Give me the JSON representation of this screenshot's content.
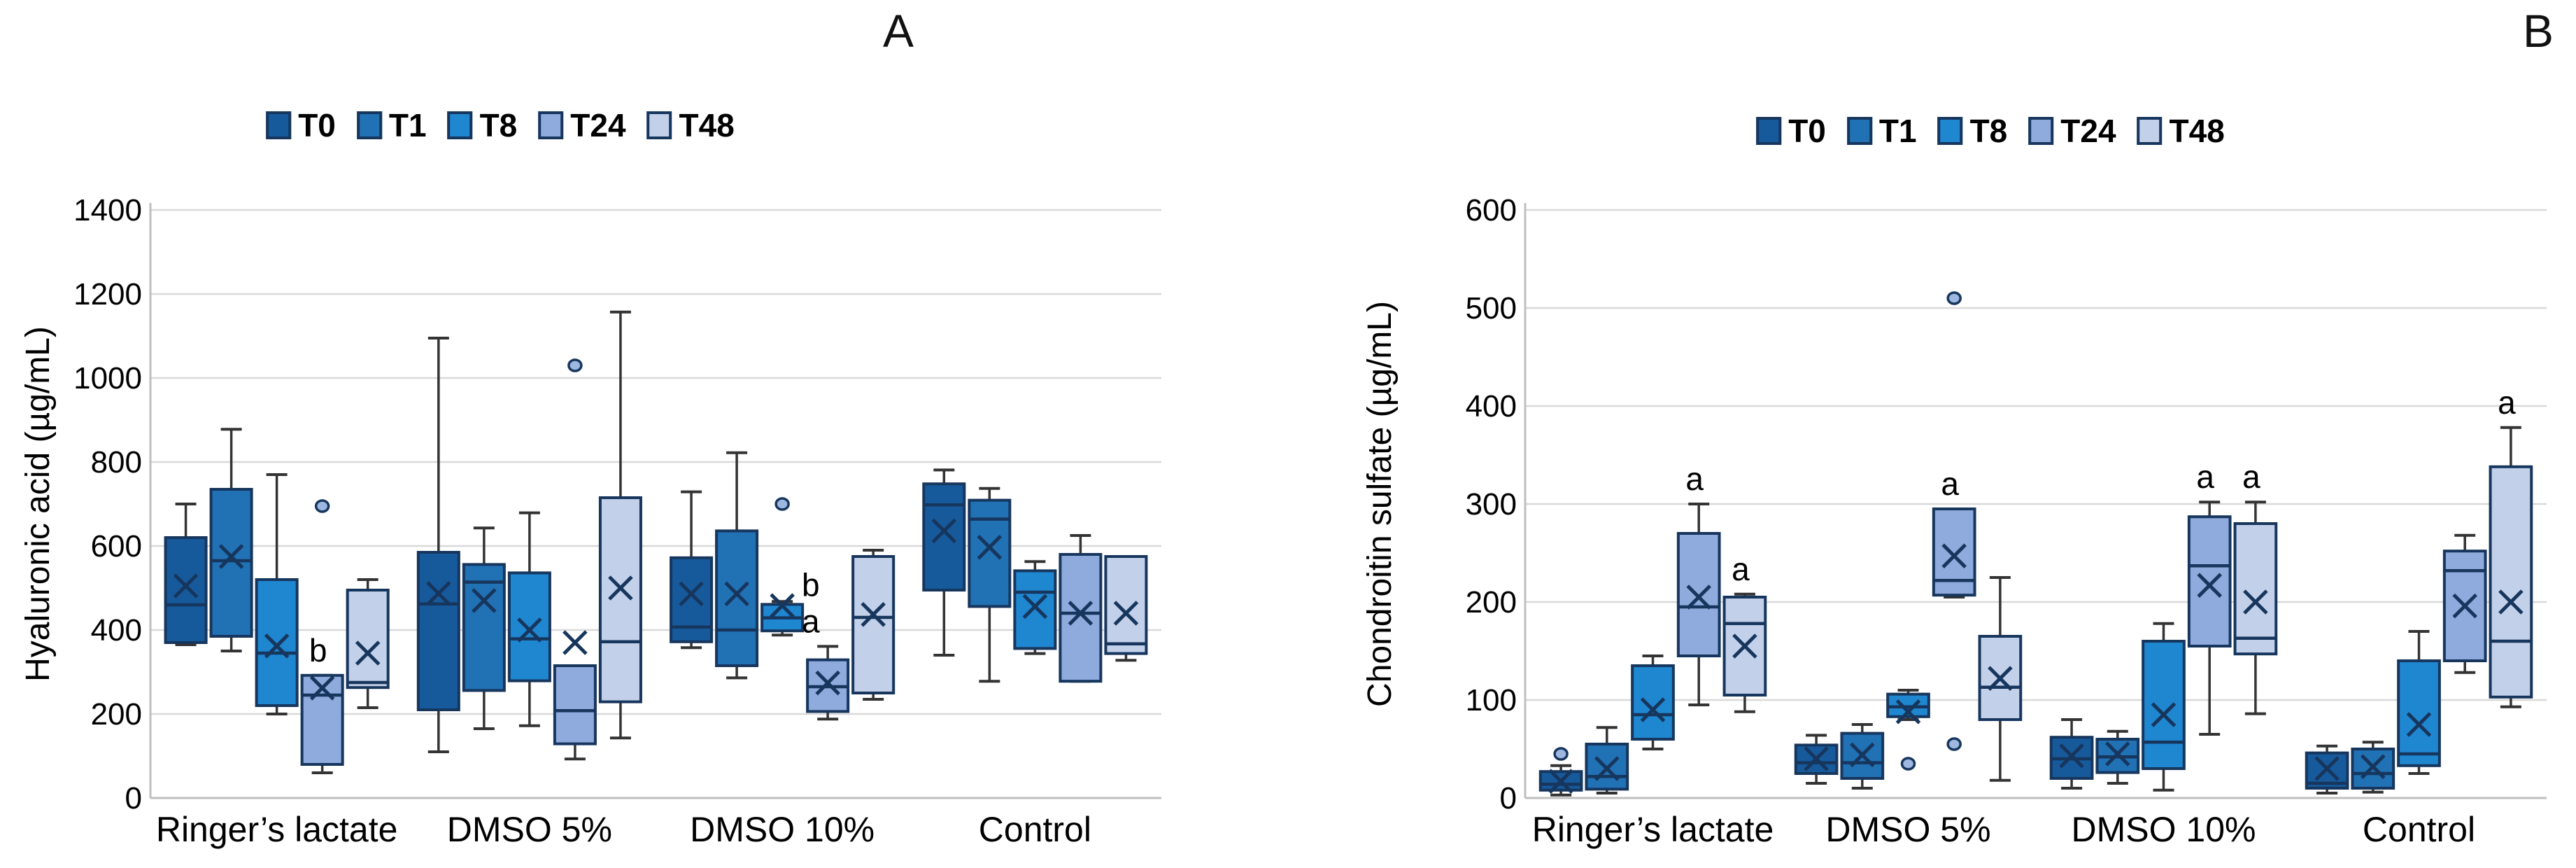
{
  "chart_data": [
    {
      "type": "box",
      "title": "A",
      "ylabel": "Hyaluronic acid (µg/mL)",
      "ylim": [
        0,
        1400
      ],
      "yticks": [
        0,
        200,
        400,
        600,
        800,
        1000,
        1200,
        1400
      ],
      "grid": "horizontal",
      "categories": [
        "Ringer’s lactate",
        "DMSO 5%",
        "DMSO 10%",
        "Control"
      ],
      "series": [
        "T0",
        "T1",
        "T8",
        "T24",
        "T48"
      ],
      "groups": [
        {
          "category": "Ringer’s lactate",
          "items": [
            {
              "t": "T0",
              "lo": 365,
              "q1": 370,
              "med": 460,
              "mean": 505,
              "q3": 620,
              "hi": 700,
              "out": [],
              "sig": ""
            },
            {
              "t": "T1",
              "lo": 350,
              "q1": 385,
              "med": 565,
              "mean": 575,
              "q3": 735,
              "hi": 878,
              "out": [],
              "sig": ""
            },
            {
              "t": "T8",
              "lo": 200,
              "q1": 220,
              "med": 345,
              "mean": 362,
              "q3": 520,
              "hi": 770,
              "out": [],
              "sig": ""
            },
            {
              "t": "T24",
              "lo": 60,
              "q1": 80,
              "med": 245,
              "mean": 262,
              "q3": 292,
              "hi": 292,
              "out": [
                695
              ],
              "sig": "b"
            },
            {
              "t": "T48",
              "lo": 215,
              "q1": 263,
              "med": 275,
              "mean": 345,
              "q3": 495,
              "hi": 520,
              "out": [],
              "sig": ""
            }
          ]
        },
        {
          "category": "DMSO 5%",
          "items": [
            {
              "t": "T0",
              "lo": 110,
              "q1": 210,
              "med": 462,
              "mean": 487,
              "q3": 585,
              "hi": 1095,
              "out": [],
              "sig": ""
            },
            {
              "t": "T1",
              "lo": 165,
              "q1": 256,
              "med": 514,
              "mean": 470,
              "q3": 556,
              "hi": 643,
              "out": [],
              "sig": ""
            },
            {
              "t": "T8",
              "lo": 172,
              "q1": 279,
              "med": 379,
              "mean": 400,
              "q3": 536,
              "hi": 679,
              "out": [],
              "sig": ""
            },
            {
              "t": "T24",
              "lo": 93,
              "q1": 129,
              "med": 208,
              "mean": 370,
              "q3": 315,
              "hi": 315,
              "out": [
                1030
              ],
              "sig": ""
            },
            {
              "t": "T48",
              "lo": 143,
              "q1": 229,
              "med": 372,
              "mean": 500,
              "q3": 715,
              "hi": 1157,
              "out": [],
              "sig": ""
            }
          ]
        },
        {
          "category": "DMSO 10%",
          "items": [
            {
              "t": "T0",
              "lo": 358,
              "q1": 372,
              "med": 407,
              "mean": 486,
              "q3": 572,
              "hi": 729,
              "out": [],
              "sig": ""
            },
            {
              "t": "T1",
              "lo": 286,
              "q1": 315,
              "med": 400,
              "mean": 486,
              "q3": 636,
              "hi": 822,
              "out": [],
              "sig": ""
            },
            {
              "t": "T8",
              "lo": 388,
              "q1": 398,
              "med": 429,
              "mean": 458,
              "q3": 461,
              "hi": 468,
              "out": [
                700
              ],
              "sig": ""
            },
            {
              "t": "T24",
              "lo": 188,
              "q1": 206,
              "med": 265,
              "mean": 274,
              "q3": 329,
              "hi": 361,
              "out": [],
              "sig": "ba"
            },
            {
              "t": "T48",
              "lo": 235,
              "q1": 250,
              "med": 430,
              "mean": 437,
              "q3": 575,
              "hi": 590,
              "out": [],
              "sig": ""
            }
          ]
        },
        {
          "category": "Control",
          "items": [
            {
              "t": "T0",
              "lo": 340,
              "q1": 495,
              "med": 698,
              "mean": 636,
              "q3": 748,
              "hi": 781,
              "out": [],
              "sig": ""
            },
            {
              "t": "T1",
              "lo": 278,
              "q1": 456,
              "med": 664,
              "mean": 597,
              "q3": 709,
              "hi": 737,
              "out": [],
              "sig": ""
            },
            {
              "t": "T8",
              "lo": 344,
              "q1": 356,
              "med": 490,
              "mean": 456,
              "q3": 541,
              "hi": 563,
              "out": [],
              "sig": ""
            },
            {
              "t": "T24",
              "lo": 278,
              "q1": 278,
              "med": 440,
              "mean": 440,
              "q3": 580,
              "hi": 625,
              "out": [],
              "sig": ""
            },
            {
              "t": "T48",
              "lo": 328,
              "q1": 344,
              "med": 367,
              "mean": 440,
              "q3": 575,
              "hi": 575,
              "out": [],
              "sig": ""
            }
          ]
        }
      ]
    },
    {
      "type": "box",
      "title": "B",
      "ylabel": "Chondroitin sulfate (µg/mL)",
      "ylim": [
        0,
        600
      ],
      "yticks": [
        0,
        100,
        200,
        300,
        400,
        500,
        600
      ],
      "grid": "horizontal",
      "categories": [
        "Ringer’s lactate",
        "DMSO 5%",
        "DMSO 10%",
        "Control"
      ],
      "series": [
        "T0",
        "T1",
        "T8",
        "T24",
        "T48"
      ],
      "groups": [
        {
          "category": "Ringer’s lactate",
          "items": [
            {
              "t": "T0",
              "lo": 3,
              "q1": 8,
              "med": 14,
              "mean": 17,
              "q3": 27,
              "hi": 33,
              "out": [
                45
              ],
              "sig": ""
            },
            {
              "t": "T1",
              "lo": 5,
              "q1": 9,
              "med": 22,
              "mean": 30,
              "q3": 55,
              "hi": 72,
              "out": [],
              "sig": ""
            },
            {
              "t": "T8",
              "lo": 50,
              "q1": 60,
              "med": 85,
              "mean": 90,
              "q3": 135,
              "hi": 145,
              "out": [],
              "sig": ""
            },
            {
              "t": "T24",
              "lo": 95,
              "q1": 145,
              "med": 195,
              "mean": 205,
              "q3": 270,
              "hi": 300,
              "out": [],
              "sig": "a"
            },
            {
              "t": "T48",
              "lo": 88,
              "q1": 105,
              "med": 178,
              "mean": 155,
              "q3": 205,
              "hi": 208,
              "out": [],
              "sig": "a"
            }
          ]
        },
        {
          "category": "DMSO 5%",
          "items": [
            {
              "t": "T0",
              "lo": 15,
              "q1": 25,
              "med": 36,
              "mean": 40,
              "q3": 54,
              "hi": 64,
              "out": [],
              "sig": ""
            },
            {
              "t": "T1",
              "lo": 10,
              "q1": 20,
              "med": 36,
              "mean": 44,
              "q3": 66,
              "hi": 75,
              "out": [],
              "sig": ""
            },
            {
              "t": "T8",
              "lo": 80,
              "q1": 83,
              "med": 93,
              "mean": 88,
              "q3": 106,
              "hi": 110,
              "out": [
                35
              ],
              "sig": ""
            },
            {
              "t": "T24",
              "lo": 205,
              "q1": 207,
              "med": 222,
              "mean": 247,
              "q3": 295,
              "hi": 295,
              "out": [
                510,
                55
              ],
              "sig": "a"
            },
            {
              "t": "T48",
              "lo": 18,
              "q1": 80,
              "med": 113,
              "mean": 122,
              "q3": 165,
              "hi": 225,
              "out": [],
              "sig": ""
            }
          ]
        },
        {
          "category": "DMSO 10%",
          "items": [
            {
              "t": "T0",
              "lo": 10,
              "q1": 20,
              "med": 40,
              "mean": 43,
              "q3": 62,
              "hi": 80,
              "out": [],
              "sig": ""
            },
            {
              "t": "T1",
              "lo": 15,
              "q1": 26,
              "med": 42,
              "mean": 45,
              "q3": 60,
              "hi": 68,
              "out": [],
              "sig": ""
            },
            {
              "t": "T8",
              "lo": 8,
              "q1": 30,
              "med": 57,
              "mean": 85,
              "q3": 160,
              "hi": 178,
              "out": [],
              "sig": ""
            },
            {
              "t": "T24",
              "lo": 65,
              "q1": 155,
              "med": 237,
              "mean": 217,
              "q3": 287,
              "hi": 302,
              "out": [],
              "sig": "a"
            },
            {
              "t": "T48",
              "lo": 86,
              "q1": 147,
              "med": 163,
              "mean": 200,
              "q3": 280,
              "hi": 302,
              "out": [],
              "sig": "a"
            }
          ]
        },
        {
          "category": "Control",
          "items": [
            {
              "t": "T0",
              "lo": 5,
              "q1": 10,
              "med": 15,
              "mean": 30,
              "q3": 46,
              "hi": 53,
              "out": [],
              "sig": ""
            },
            {
              "t": "T1",
              "lo": 6,
              "q1": 10,
              "med": 25,
              "mean": 32,
              "q3": 50,
              "hi": 57,
              "out": [],
              "sig": ""
            },
            {
              "t": "T8",
              "lo": 25,
              "q1": 33,
              "med": 45,
              "mean": 75,
              "q3": 140,
              "hi": 170,
              "out": [],
              "sig": ""
            },
            {
              "t": "T24",
              "lo": 128,
              "q1": 140,
              "med": 232,
              "mean": 196,
              "q3": 252,
              "hi": 268,
              "out": [],
              "sig": ""
            },
            {
              "t": "T48",
              "lo": 93,
              "q1": 103,
              "med": 160,
              "mean": 200,
              "q3": 338,
              "hi": 378,
              "out": [],
              "sig": "a"
            }
          ]
        }
      ]
    }
  ],
  "legend": {
    "items": [
      {
        "label": "T0",
        "color": "#175A9C"
      },
      {
        "label": "T1",
        "color": "#2171B5"
      },
      {
        "label": "T8",
        "color": "#1F86D0"
      },
      {
        "label": "T24",
        "color": "#8FAADC"
      },
      {
        "label": "T48",
        "color": "#C3D0EA"
      }
    ]
  },
  "colors": {
    "box_border": "#17365D",
    "whisker": "#333333",
    "grid": "#D9D9D9",
    "axis": "#BFBFBF",
    "outlier_fill": "#9DB7E0",
    "text": "#000000"
  }
}
